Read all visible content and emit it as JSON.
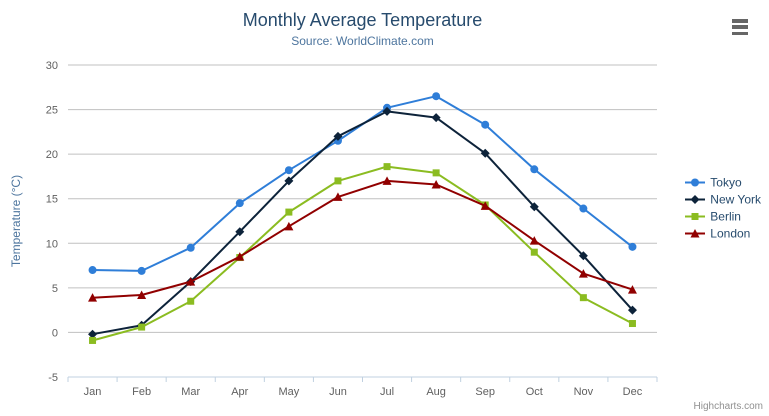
{
  "header": {
    "title": "Monthly Average Temperature",
    "subtitle": "Source: WorldClimate.com",
    "menu_icon": "hamburger-icon"
  },
  "chart_data": {
    "type": "line",
    "title": "Monthly Average Temperature",
    "subtitle": "Source: WorldClimate.com",
    "categories": [
      "Jan",
      "Feb",
      "Mar",
      "Apr",
      "May",
      "Jun",
      "Jul",
      "Aug",
      "Sep",
      "Oct",
      "Nov",
      "Dec"
    ],
    "series": [
      {
        "name": "Tokyo",
        "color": "#2f7ed8",
        "marker": "circle",
        "values": [
          7.0,
          6.9,
          9.5,
          14.5,
          18.2,
          21.5,
          25.2,
          26.5,
          23.3,
          18.3,
          13.9,
          9.6
        ]
      },
      {
        "name": "New York",
        "color": "#0d233a",
        "marker": "diamond",
        "values": [
          -0.2,
          0.8,
          5.7,
          11.3,
          17.0,
          22.0,
          24.8,
          24.1,
          20.1,
          14.1,
          8.6,
          2.5
        ]
      },
      {
        "name": "Berlin",
        "color": "#8bbc21",
        "marker": "square",
        "values": [
          -0.9,
          0.6,
          3.5,
          8.4,
          13.5,
          17.0,
          18.6,
          17.9,
          14.3,
          9.0,
          3.9,
          1.0
        ]
      },
      {
        "name": "London",
        "color": "#910000",
        "marker": "triangle",
        "values": [
          3.9,
          4.2,
          5.7,
          8.5,
          11.9,
          15.2,
          17.0,
          16.6,
          14.2,
          10.3,
          6.6,
          4.8
        ]
      }
    ],
    "xlabel": "",
    "ylabel": "Temperature (°C)",
    "ylim": [
      -5,
      30
    ],
    "ytick_interval": 5,
    "grid": true,
    "legend_position": "right"
  },
  "credits": {
    "label": "Highcharts.com"
  },
  "colors": {
    "title": "#274b6d",
    "subtitle": "#4d759e",
    "grid": "#c0c0c0",
    "axis_line": "#c0d0e0",
    "tick_label": "#606060",
    "axis_title": "#4d759e",
    "legend_text": "#274b6d",
    "credits": "#909090",
    "menu_icon": "#666666"
  }
}
